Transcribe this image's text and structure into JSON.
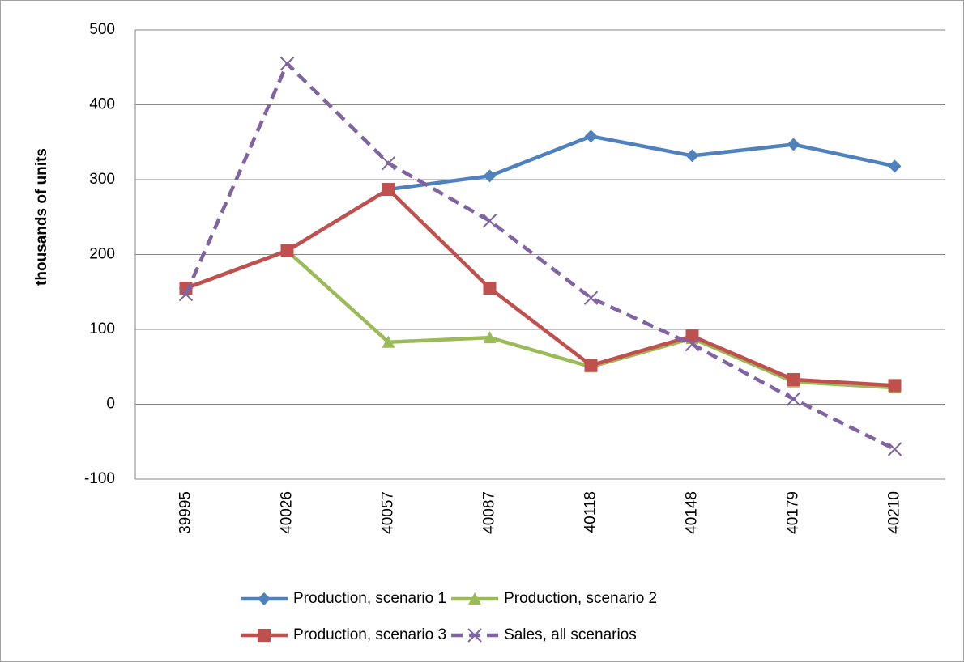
{
  "chart_data": {
    "type": "line",
    "y_label": "thousands of units",
    "categories": [
      "39995",
      "40026",
      "40057",
      "40087",
      "40118",
      "40148",
      "40179",
      "40210"
    ],
    "series": [
      {
        "name": "Production, scenario 1",
        "color": "#4f81bd",
        "marker": "diamond",
        "dashed": false,
        "values": [
          155,
          205,
          287,
          305,
          358,
          332,
          347,
          318
        ]
      },
      {
        "name": "Production, scenario 2",
        "color": "#9bbb59",
        "marker": "triangle",
        "dashed": false,
        "values": [
          155,
          205,
          83,
          89,
          50,
          88,
          30,
          22
        ]
      },
      {
        "name": "Production, scenario 3",
        "color": "#c0504d",
        "marker": "square",
        "dashed": false,
        "values": [
          155,
          205,
          287,
          155,
          52,
          91,
          33,
          25
        ]
      },
      {
        "name": "Sales, all scenarios",
        "color": "#8064a2",
        "marker": "x",
        "dashed": true,
        "values": [
          147,
          455,
          322,
          245,
          142,
          80,
          7,
          -60
        ]
      }
    ],
    "ylim": [
      -100,
      500
    ],
    "yticks": [
      -100,
      0,
      100,
      200,
      300,
      400,
      500
    ],
    "grid": true,
    "legend": "bottom"
  }
}
